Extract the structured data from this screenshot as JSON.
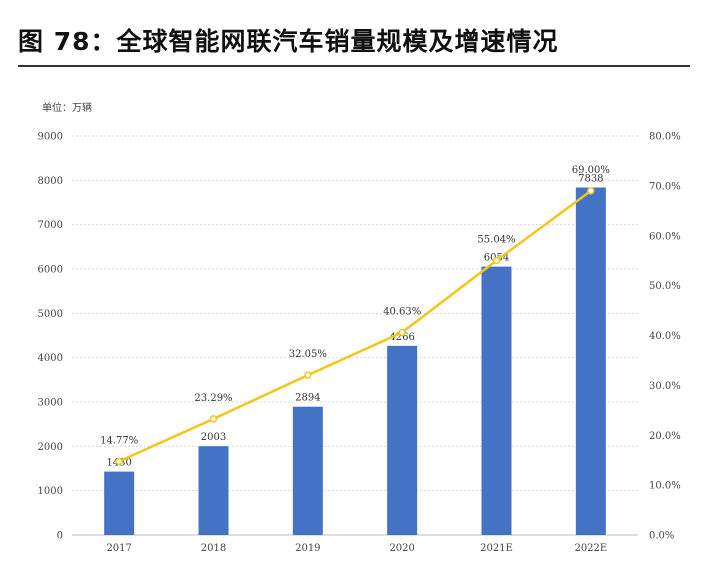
{
  "header": {
    "figure_title": "图 78：全球智能网联汽车销量规模及增速情况",
    "unit_label": "单位：万辆"
  },
  "chart_data": {
    "type": "bar",
    "categories": [
      "2017",
      "2018",
      "2019",
      "2020",
      "2021E",
      "2022E"
    ],
    "series": [
      {
        "values": [
          1430,
          2003,
          2894,
          4266,
          6054,
          7838
        ],
        "chart_type": "bar",
        "axis": "left",
        "color": "#4472C4"
      },
      {
        "values": [
          14.77,
          23.29,
          32.05,
          40.63,
          55.04,
          69.0
        ],
        "chart_type": "line",
        "axis": "right",
        "color": "#F5C518",
        "data_labels": [
          "14.77%",
          "23.29%",
          "32.05%",
          "40.63%",
          "55.04%",
          "69.00%"
        ]
      }
    ],
    "y_left": {
      "range": [
        0,
        9000
      ],
      "ticks": [
        "0",
        "1000",
        "2000",
        "3000",
        "4000",
        "5000",
        "6000",
        "7000",
        "8000",
        "9000"
      ]
    },
    "y_right": {
      "range": [
        0,
        80
      ],
      "ticks": [
        "0.0%",
        "10.0%",
        "20.0%",
        "30.0%",
        "40.0%",
        "50.0%",
        "60.0%",
        "70.0%",
        "80.0%"
      ]
    },
    "grid": true,
    "legend": "none"
  }
}
